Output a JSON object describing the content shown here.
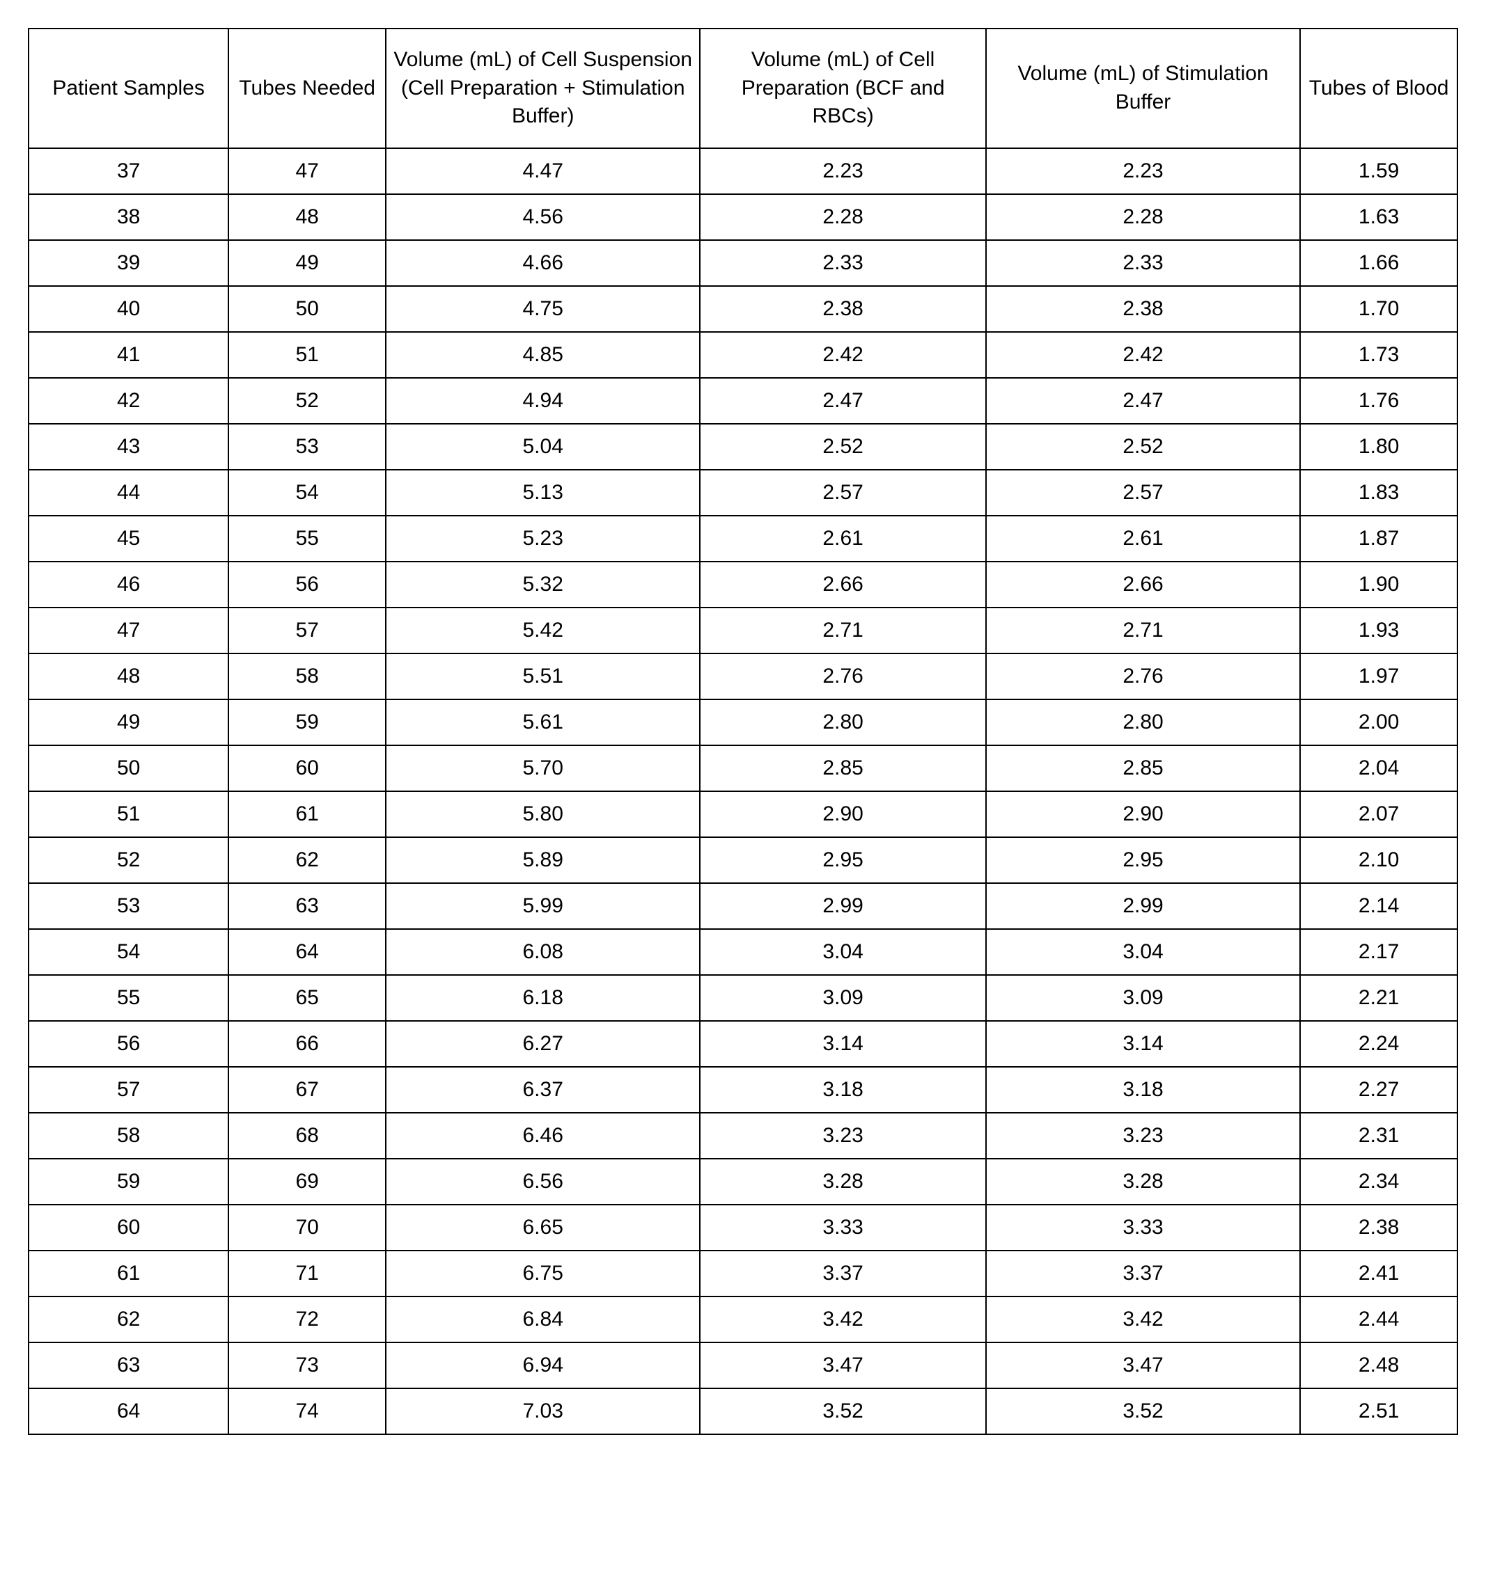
{
  "table": {
    "type": "table",
    "background_color": "#ffffff",
    "border_color": "#000000",
    "border_width": 2,
    "font_family": "Arial, Helvetica, sans-serif",
    "header_fontsize": 30,
    "cell_fontsize": 30,
    "text_color": "#000000",
    "column_widths_pct": [
      14,
      11,
      22,
      20,
      22,
      11
    ],
    "columns": [
      "Patient Samples",
      "Tubes Needed",
      "Volume (mL) of Cell Suspension (Cell Preparation + Stimulation Buffer)",
      "Volume (mL) of Cell Preparation (BCF and RBCs)",
      "Volume (mL) of Stimulation Buffer",
      "Tubes of Blood"
    ],
    "rows": [
      [
        "37",
        "47",
        "4.47",
        "2.23",
        "2.23",
        "1.59"
      ],
      [
        "38",
        "48",
        "4.56",
        "2.28",
        "2.28",
        "1.63"
      ],
      [
        "39",
        "49",
        "4.66",
        "2.33",
        "2.33",
        "1.66"
      ],
      [
        "40",
        "50",
        "4.75",
        "2.38",
        "2.38",
        "1.70"
      ],
      [
        "41",
        "51",
        "4.85",
        "2.42",
        "2.42",
        "1.73"
      ],
      [
        "42",
        "52",
        "4.94",
        "2.47",
        "2.47",
        "1.76"
      ],
      [
        "43",
        "53",
        "5.04",
        "2.52",
        "2.52",
        "1.80"
      ],
      [
        "44",
        "54",
        "5.13",
        "2.57",
        "2.57",
        "1.83"
      ],
      [
        "45",
        "55",
        "5.23",
        "2.61",
        "2.61",
        "1.87"
      ],
      [
        "46",
        "56",
        "5.32",
        "2.66",
        "2.66",
        "1.90"
      ],
      [
        "47",
        "57",
        "5.42",
        "2.71",
        "2.71",
        "1.93"
      ],
      [
        "48",
        "58",
        "5.51",
        "2.76",
        "2.76",
        "1.97"
      ],
      [
        "49",
        "59",
        "5.61",
        "2.80",
        "2.80",
        "2.00"
      ],
      [
        "50",
        "60",
        "5.70",
        "2.85",
        "2.85",
        "2.04"
      ],
      [
        "51",
        "61",
        "5.80",
        "2.90",
        "2.90",
        "2.07"
      ],
      [
        "52",
        "62",
        "5.89",
        "2.95",
        "2.95",
        "2.10"
      ],
      [
        "53",
        "63",
        "5.99",
        "2.99",
        "2.99",
        "2.14"
      ],
      [
        "54",
        "64",
        "6.08",
        "3.04",
        "3.04",
        "2.17"
      ],
      [
        "55",
        "65",
        "6.18",
        "3.09",
        "3.09",
        "2.21"
      ],
      [
        "56",
        "66",
        "6.27",
        "3.14",
        "3.14",
        "2.24"
      ],
      [
        "57",
        "67",
        "6.37",
        "3.18",
        "3.18",
        "2.27"
      ],
      [
        "58",
        "68",
        "6.46",
        "3.23",
        "3.23",
        "2.31"
      ],
      [
        "59",
        "69",
        "6.56",
        "3.28",
        "3.28",
        "2.34"
      ],
      [
        "60",
        "70",
        "6.65",
        "3.33",
        "3.33",
        "2.38"
      ],
      [
        "61",
        "71",
        "6.75",
        "3.37",
        "3.37",
        "2.41"
      ],
      [
        "62",
        "72",
        "6.84",
        "3.42",
        "3.42",
        "2.44"
      ],
      [
        "63",
        "73",
        "6.94",
        "3.47",
        "3.47",
        "2.48"
      ],
      [
        "64",
        "74",
        "7.03",
        "3.52",
        "3.52",
        "2.51"
      ]
    ]
  }
}
